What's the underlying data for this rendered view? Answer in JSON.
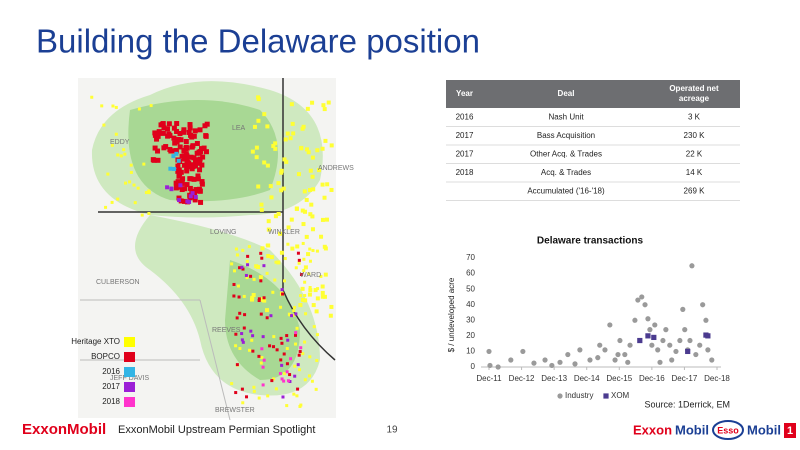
{
  "title": "Building the Delaware position",
  "map": {
    "labels": [
      "CULBERSON",
      "WINKLER",
      "REEVES",
      "JEFF DAVIS",
      "EDDY",
      "LEA",
      "LOVING",
      "WARD",
      "ANDREWS",
      "BREWSTER"
    ],
    "legend": [
      {
        "name": "Heritage XTO",
        "color": "#ffff00"
      },
      {
        "name": "BOPCO",
        "color": "#e0001b"
      },
      {
        "name": "2016",
        "color": "#33b5e5"
      },
      {
        "name": "2017",
        "color": "#9b1fd6"
      },
      {
        "name": "2018",
        "color": "#ff33cc"
      }
    ]
  },
  "table": {
    "header": [
      "Year",
      "Deal",
      "Operated net acreage"
    ],
    "rows": [
      [
        "2016",
        "Nash Unit",
        "3 K"
      ],
      [
        "2017",
        "Bass Acquisition",
        "230 K"
      ],
      [
        "2017",
        "Other Acq. & Trades",
        "22 K"
      ],
      [
        "2018",
        "Acq. & Trades",
        "14 K"
      ],
      [
        "",
        "Accumulated ('16-'18)",
        "269 K"
      ]
    ]
  },
  "chart_data": {
    "type": "scatter",
    "title": "Delaware transactions",
    "y_label": "$ / undeveloped acre",
    "xlim": [
      2011.92,
      2018.92
    ],
    "ylim": [
      0,
      70
    ],
    "xticks": [
      {
        "value": 2011.92,
        "label": "Dec-11"
      },
      {
        "value": 2012.92,
        "label": "Dec-12"
      },
      {
        "value": 2013.92,
        "label": "Dec-13"
      },
      {
        "value": 2014.92,
        "label": "Dec-14"
      },
      {
        "value": 2015.92,
        "label": "Dec-15"
      },
      {
        "value": 2016.92,
        "label": "Dec-16"
      },
      {
        "value": 2017.92,
        "label": "Dec-17"
      },
      {
        "value": 2018.92,
        "label": "Dec-18"
      }
    ],
    "yticks": [
      0,
      10,
      20,
      30,
      40,
      50,
      60,
      70
    ],
    "series": [
      {
        "name": "Industry",
        "color": "#9a9a9a",
        "x": [
          2011.92,
          2011.95,
          2012.2,
          2012.59,
          2012.96,
          2013.3,
          2013.64,
          2013.85,
          2014.1,
          2014.34,
          2014.56,
          2014.71,
          2015.02,
          2015.26,
          2015.48,
          2015.63,
          2015.79,
          2015.94,
          2016.09,
          2016.25,
          2016.4,
          2016.49,
          2016.61,
          2016.71,
          2016.8,
          2016.86,
          2016.92,
          2017.01,
          2017.1,
          2017.17,
          2017.26,
          2017.35,
          2017.47,
          2017.53,
          2017.66,
          2017.78,
          2017.87,
          2017.93,
          2018.02,
          2018.09,
          2018.15,
          2018.27,
          2018.39,
          2018.48,
          2018.58,
          2018.64,
          2018.76,
          2016.18,
          2015.88,
          2015.32
        ],
        "values": [
          10,
          1,
          0,
          4.5,
          10,
          2.5,
          4.5,
          1,
          3,
          8,
          2,
          11,
          4.5,
          6,
          11,
          27,
          4.5,
          17,
          8,
          14,
          30,
          43,
          45,
          40,
          31,
          24,
          14,
          27,
          11,
          3,
          17,
          24,
          14,
          4.5,
          10,
          17,
          37,
          24,
          11,
          17,
          65,
          8,
          14,
          40,
          30,
          11,
          4.5,
          3,
          8,
          14
        ]
      },
      {
        "name": "XOM",
        "color": "#4b3b8f",
        "x": [
          2016.55,
          2016.8,
          2016.98,
          2018.02,
          2018.58,
          2018.64
        ],
        "values": [
          17,
          20,
          19,
          10,
          20.5,
          20
        ]
      }
    ]
  },
  "source": "Source: 1Derrick, EM",
  "footer": {
    "brand": "ExxonMobil",
    "text": "ExxonMobil Upstream Permian Spotlight",
    "page": "19",
    "logos": [
      "Exxon",
      "Mobil",
      "Esso",
      "Mobil",
      "1"
    ]
  }
}
